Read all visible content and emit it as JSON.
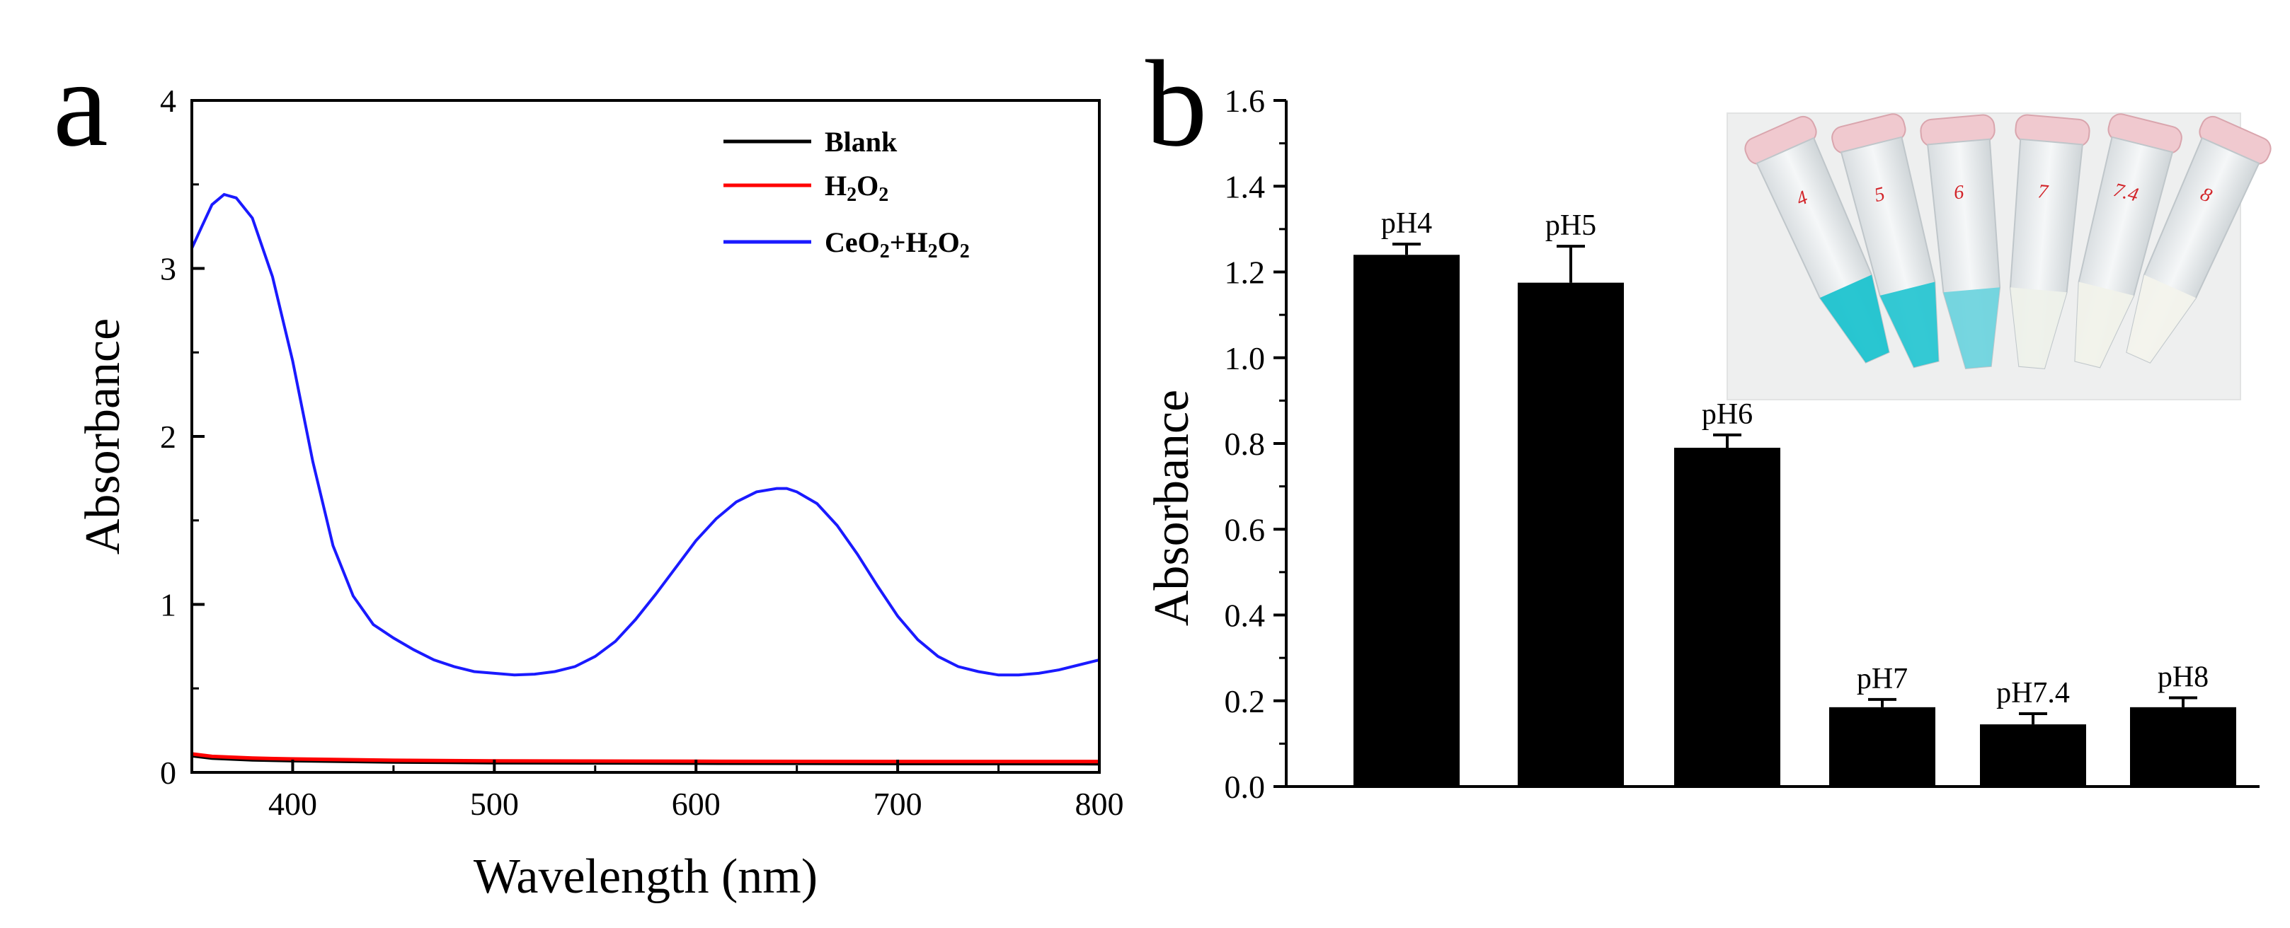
{
  "chart_data": [
    {
      "panel": "a",
      "type": "line",
      "xlabel": "Wavelength (nm)",
      "ylabel": "Absorbance",
      "xlim": [
        350,
        800
      ],
      "ylim": [
        0,
        4
      ],
      "x_ticks": [
        400,
        500,
        600,
        700,
        800
      ],
      "y_ticks": [
        0,
        1,
        2,
        3,
        4
      ],
      "x_tick_labels": [
        "400",
        "500",
        "600",
        "700",
        "800"
      ],
      "y_tick_labels": [
        "0",
        "1",
        "2",
        "3",
        "4"
      ],
      "legend_position": "top-right",
      "series": [
        {
          "name": "Blank",
          "legend_parts": [
            {
              "t": "Blank"
            }
          ],
          "color": "#000000",
          "points": [
            [
              350,
              0.1
            ],
            [
              360,
              0.085
            ],
            [
              380,
              0.075
            ],
            [
              400,
              0.07
            ],
            [
              450,
              0.062
            ],
            [
              500,
              0.058
            ],
            [
              600,
              0.055
            ],
            [
              700,
              0.053
            ],
            [
              800,
              0.052
            ]
          ]
        },
        {
          "name": "H2O2",
          "legend_parts": [
            {
              "t": "H"
            },
            {
              "t": "2",
              "sub": true
            },
            {
              "t": "O"
            },
            {
              "t": "2",
              "sub": true
            }
          ],
          "color": "#ff0000",
          "points": [
            [
              350,
              0.11
            ],
            [
              360,
              0.095
            ],
            [
              380,
              0.085
            ],
            [
              400,
              0.08
            ],
            [
              450,
              0.072
            ],
            [
              500,
              0.068
            ],
            [
              600,
              0.066
            ],
            [
              700,
              0.065
            ],
            [
              800,
              0.065
            ]
          ]
        },
        {
          "name": "CeO2+H2O2",
          "legend_parts": [
            {
              "t": "CeO"
            },
            {
              "t": "2",
              "sub": true
            },
            {
              "t": "+H"
            },
            {
              "t": "2",
              "sub": true
            },
            {
              "t": "O"
            },
            {
              "t": "2",
              "sub": true
            }
          ],
          "color": "#1a1aff",
          "points": [
            [
              350,
              3.12
            ],
            [
              355,
              3.25
            ],
            [
              360,
              3.38
            ],
            [
              366,
              3.44
            ],
            [
              372,
              3.42
            ],
            [
              380,
              3.3
            ],
            [
              390,
              2.95
            ],
            [
              400,
              2.45
            ],
            [
              410,
              1.85
            ],
            [
              420,
              1.35
            ],
            [
              430,
              1.05
            ],
            [
              440,
              0.88
            ],
            [
              450,
              0.8
            ],
            [
              460,
              0.73
            ],
            [
              470,
              0.67
            ],
            [
              480,
              0.63
            ],
            [
              490,
              0.6
            ],
            [
              500,
              0.59
            ],
            [
              510,
              0.58
            ],
            [
              520,
              0.585
            ],
            [
              530,
              0.6
            ],
            [
              540,
              0.63
            ],
            [
              550,
              0.69
            ],
            [
              560,
              0.78
            ],
            [
              570,
              0.91
            ],
            [
              580,
              1.06
            ],
            [
              590,
              1.22
            ],
            [
              600,
              1.38
            ],
            [
              610,
              1.51
            ],
            [
              620,
              1.61
            ],
            [
              630,
              1.67
            ],
            [
              640,
              1.69
            ],
            [
              645,
              1.69
            ],
            [
              650,
              1.67
            ],
            [
              660,
              1.6
            ],
            [
              670,
              1.47
            ],
            [
              680,
              1.3
            ],
            [
              690,
              1.11
            ],
            [
              700,
              0.93
            ],
            [
              710,
              0.79
            ],
            [
              720,
              0.69
            ],
            [
              730,
              0.63
            ],
            [
              740,
              0.6
            ],
            [
              750,
              0.58
            ],
            [
              760,
              0.58
            ],
            [
              770,
              0.59
            ],
            [
              780,
              0.61
            ],
            [
              790,
              0.64
            ],
            [
              800,
              0.67
            ]
          ]
        }
      ]
    },
    {
      "panel": "b",
      "type": "bar",
      "ylabel": "Absorbance",
      "ylim": [
        0,
        1.6
      ],
      "y_ticks": [
        0.0,
        0.2,
        0.4,
        0.6,
        0.8,
        1.0,
        1.2,
        1.4,
        1.6
      ],
      "y_tick_labels": [
        "0.0",
        "0.2",
        "0.4",
        "0.6",
        "0.8",
        "1.0",
        "1.2",
        "1.4",
        "1.6"
      ],
      "bar_color": "#000000",
      "categories": [
        "pH4",
        "pH5",
        "pH6",
        "pH7",
        "pH7.4",
        "pH8"
      ],
      "values": [
        1.24,
        1.175,
        0.79,
        0.185,
        0.145,
        0.185
      ],
      "errors": [
        0.025,
        0.085,
        0.03,
        0.018,
        0.025,
        0.022
      ],
      "inset": {
        "description": "photo of six microcentrifuge tubes",
        "tube_labels": [
          "4",
          "5",
          "6",
          "7",
          "7.4",
          "8"
        ],
        "liquid_colors": [
          "#1ec3cf",
          "#29c6d2",
          "#6fd4de",
          "#eef1ea",
          "#f1f2ea",
          "#f3f3ec"
        ]
      }
    }
  ],
  "panel_letters": [
    "a",
    "b"
  ]
}
